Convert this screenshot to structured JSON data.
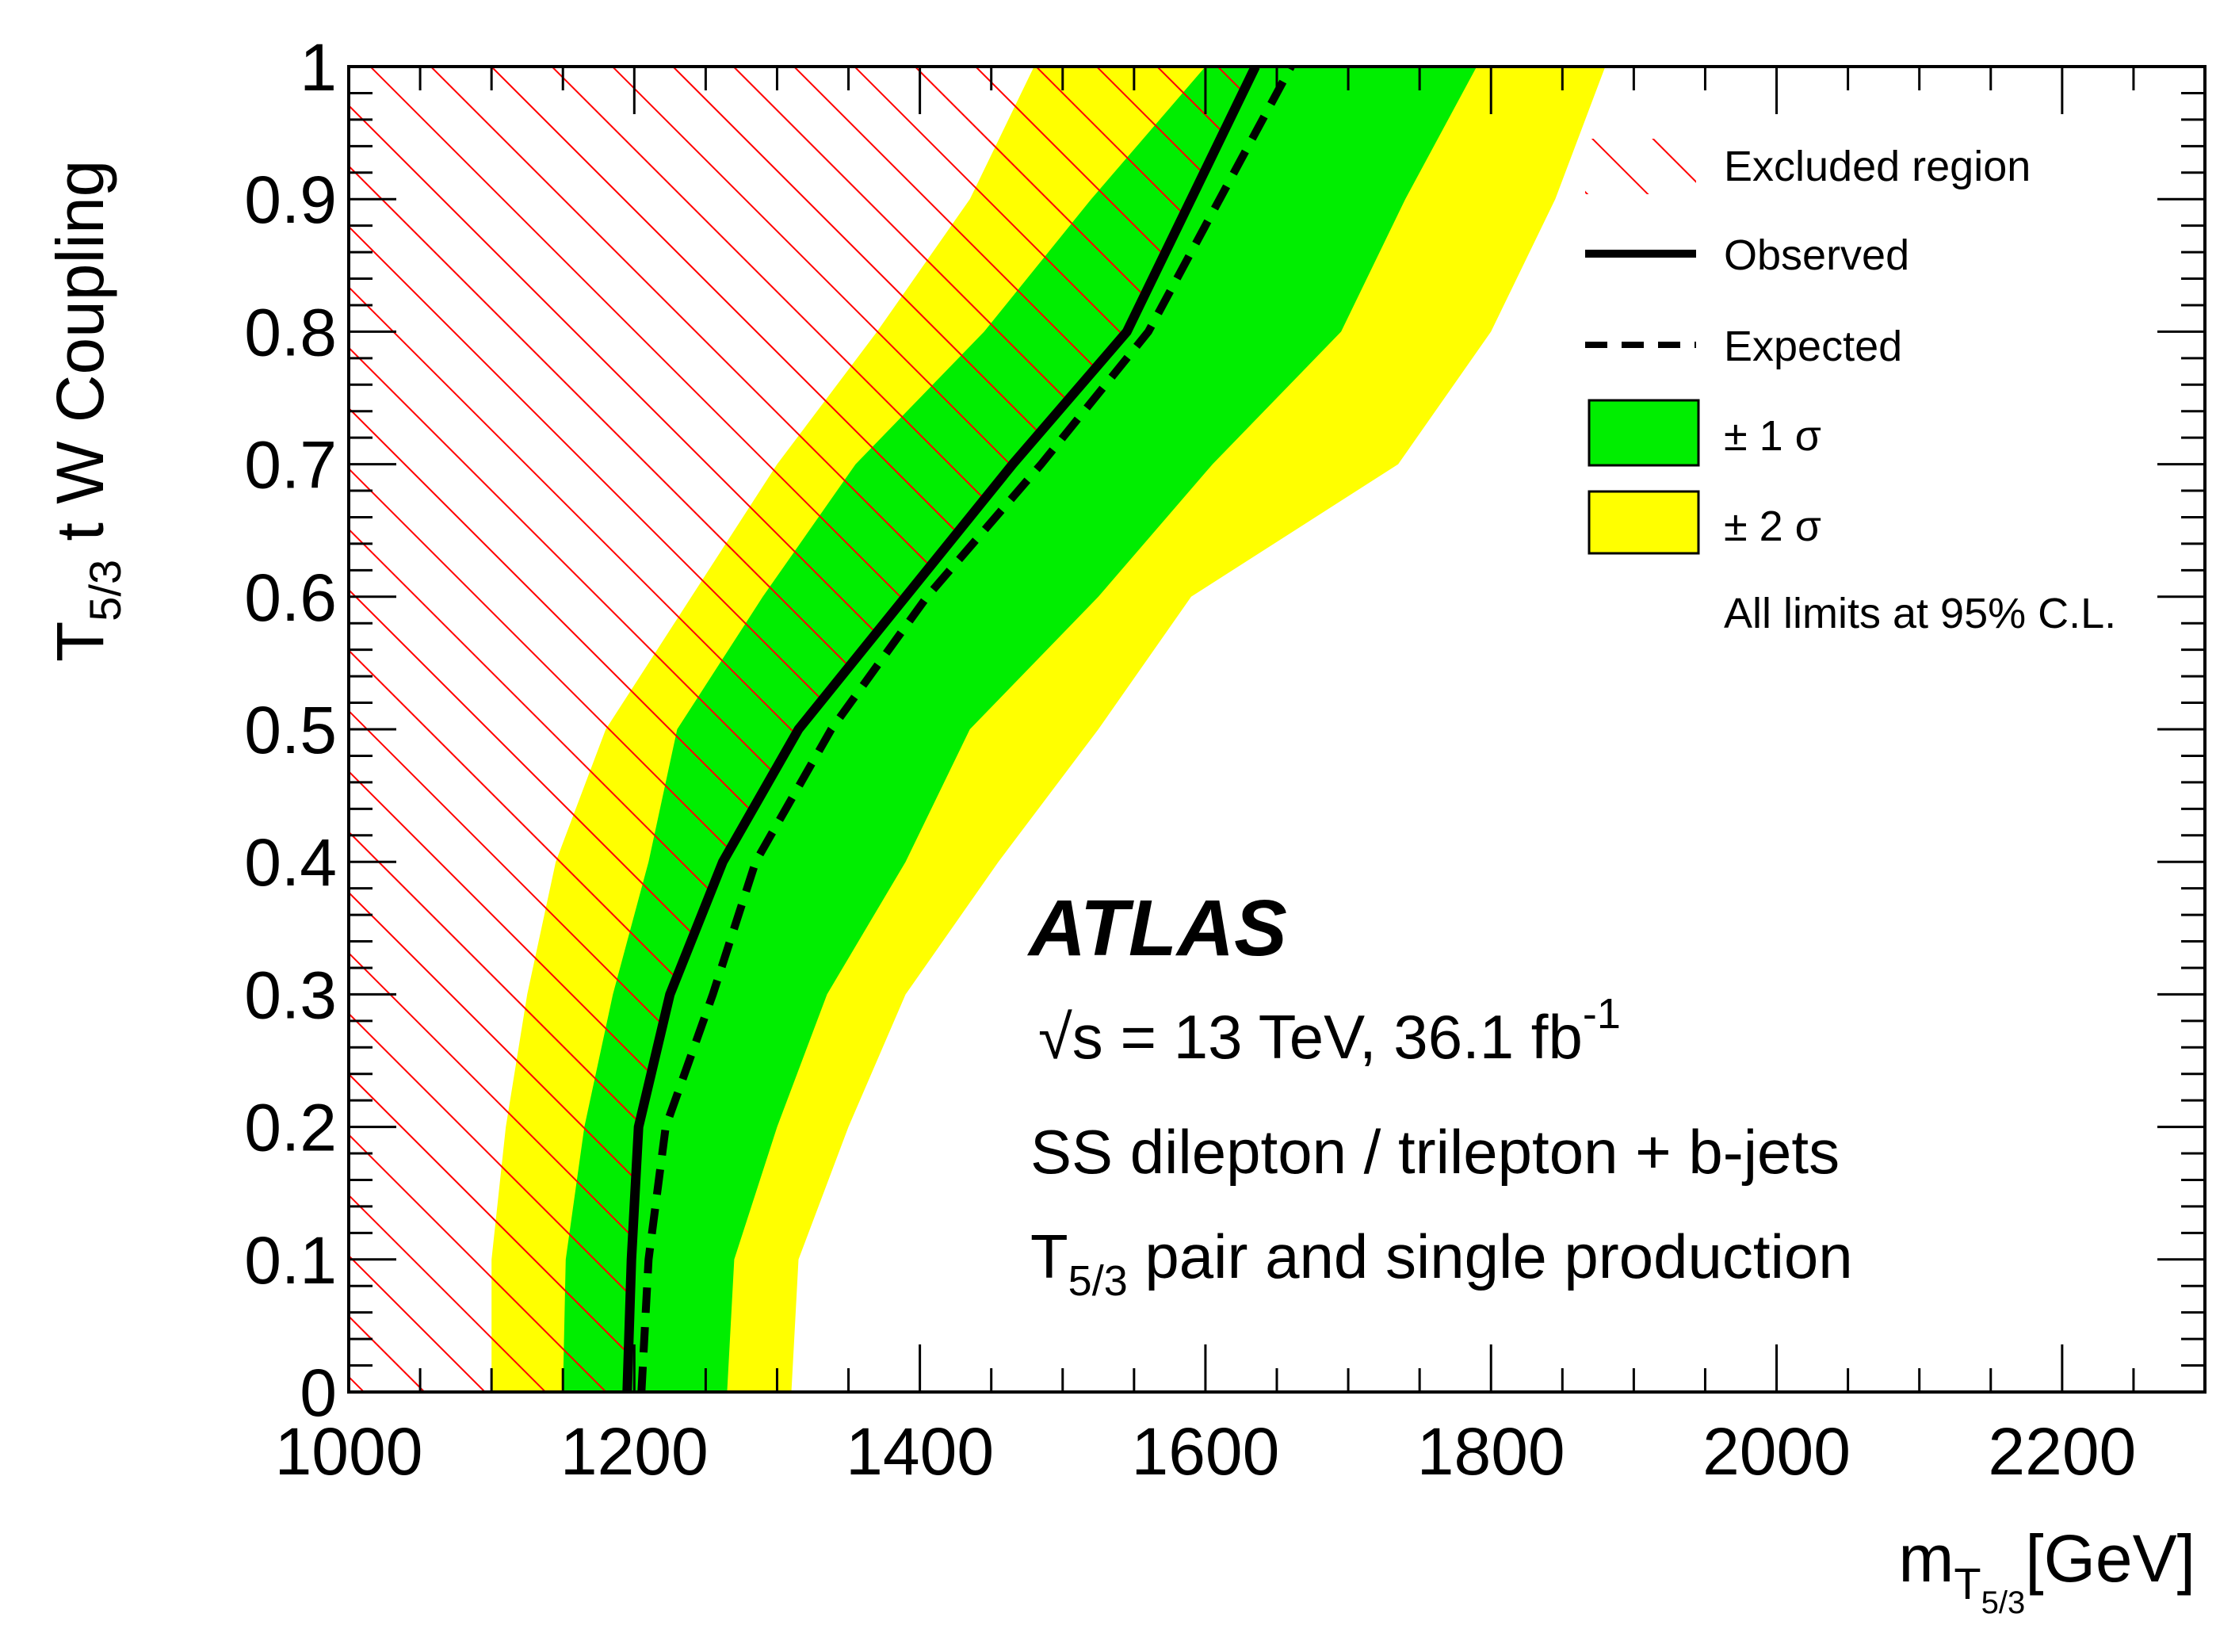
{
  "chart_data": {
    "type": "area",
    "xlabel": "m",
    "xlabel_sub": "T",
    "xlabel_subsub": "5/3",
    "xlabel_units": "[GeV]",
    "ylabel_main": "T",
    "ylabel_sub": "5/3",
    "ylabel_rest": " t W Coupling",
    "xlim": [
      1000,
      2300
    ],
    "ylim": [
      0,
      1
    ],
    "x_ticks": [
      "1000",
      "1200",
      "1400",
      "1600",
      "1800",
      "2000",
      "2200"
    ],
    "y_ticks": [
      "0",
      "0.1",
      "0.2",
      "0.3",
      "0.4",
      "0.5",
      "0.6",
      "0.7",
      "0.8",
      "0.9",
      "1"
    ],
    "y": [
      0,
      0.1,
      0.2,
      0.3,
      0.4,
      0.5,
      0.6,
      0.7,
      0.8,
      0.9,
      1.0
    ],
    "series": [
      {
        "name": "Excluded region",
        "type": "hatch",
        "x": [
          1195,
          1198,
          1203,
          1225,
          1262,
          1315,
          1390,
          1465,
          1545,
          1590,
          1635
        ],
        "color": "#ff0000"
      },
      {
        "name": "Observed",
        "type": "line",
        "style": "solid",
        "x": [
          1195,
          1198,
          1203,
          1225,
          1262,
          1315,
          1390,
          1465,
          1545,
          1590,
          1635
        ],
        "color": "#000000"
      },
      {
        "name": "Expected",
        "type": "line",
        "style": "dashed",
        "x": [
          1205,
          1210,
          1222,
          1255,
          1285,
          1338,
          1405,
          1485,
          1560,
          1610,
          1660
        ],
        "color": "#000000"
      },
      {
        "name": "± 1 σ",
        "type": "band",
        "lower": [
          1150,
          1152,
          1165,
          1185,
          1210,
          1230,
          1290,
          1355,
          1445,
          1520,
          1600
        ],
        "upper": [
          1265,
          1270,
          1300,
          1335,
          1390,
          1435,
          1525,
          1605,
          1695,
          1740,
          1790
        ],
        "color": "#00ee00"
      },
      {
        "name": "± 2 σ",
        "type": "band",
        "lower": [
          1100,
          1100,
          1110,
          1125,
          1145,
          1180,
          1240,
          1300,
          1370,
          1435,
          1480
        ],
        "upper": [
          1310,
          1315,
          1350,
          1390,
          1455,
          1525,
          1590,
          1735,
          1800,
          1845,
          1880
        ],
        "color": "#ffff00"
      }
    ],
    "legend": {
      "placement": "top-right",
      "entries": [
        {
          "label": "Excluded region",
          "kind": "hatch"
        },
        {
          "label": "Observed",
          "kind": "solid"
        },
        {
          "label": "Expected",
          "kind": "dashed"
        },
        {
          "label": "± 1 σ",
          "kind": "box",
          "color": "#00ee00"
        },
        {
          "label": "± 2 σ",
          "kind": "box",
          "color": "#ffff00"
        }
      ],
      "note": "All limits at 95% C.L."
    },
    "annotations": {
      "experiment": "ATLAS",
      "energy_prefix": "√s = 13 TeV, 36.1 fb",
      "energy_sup": "-1",
      "line1": "SS dilepton / trilepton + b-jets",
      "line2_main": "T",
      "line2_sub": "5/3",
      "line2_rest": " pair and single production"
    }
  }
}
